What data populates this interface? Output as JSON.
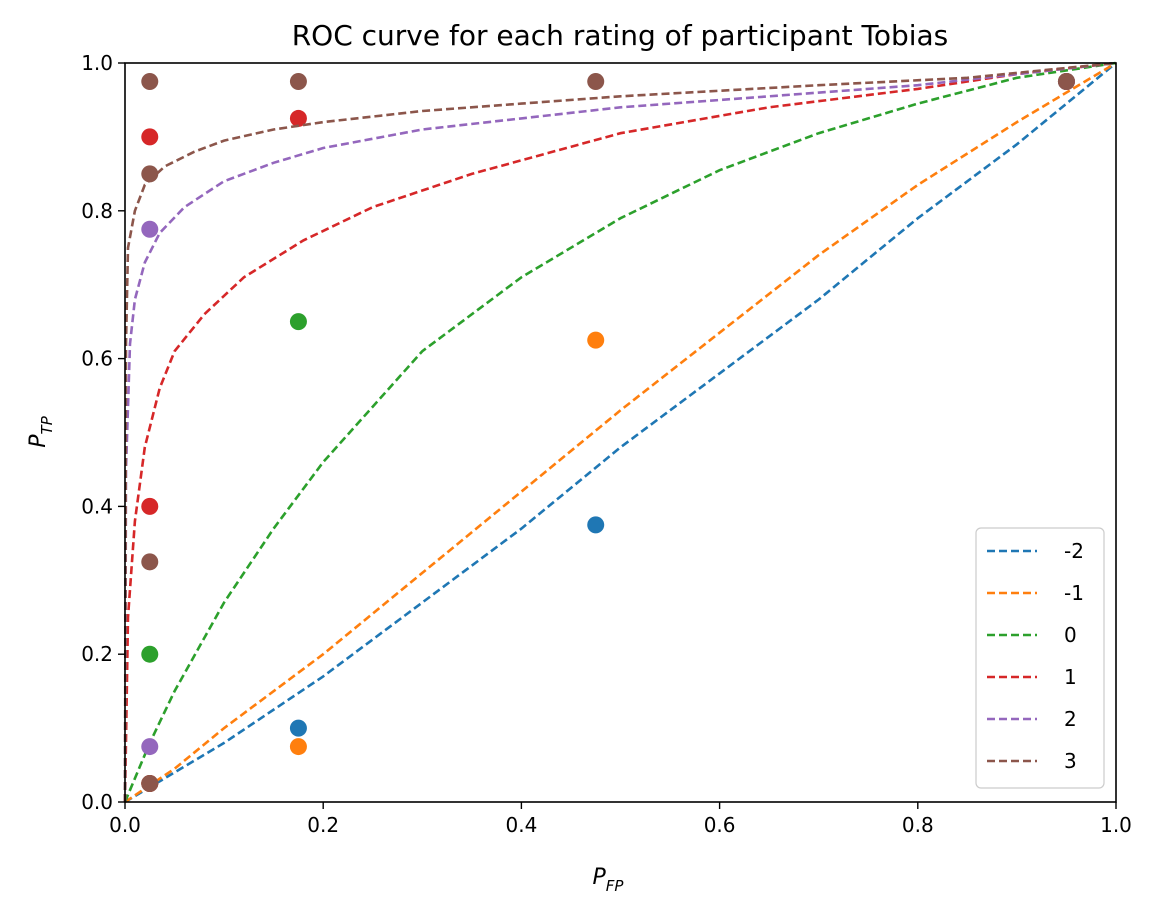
{
  "chart_data": {
    "type": "line",
    "title": "ROC curve for each rating of participant Tobias",
    "xlabel": {
      "main": "P",
      "sub": "FP"
    },
    "ylabel": {
      "main": "P",
      "sub": "TP"
    },
    "xlim": [
      0.0,
      1.0
    ],
    "ylim": [
      0.0,
      1.0
    ],
    "xticks": [
      0.0,
      0.2,
      0.4,
      0.6,
      0.8,
      1.0
    ],
    "yticks": [
      0.0,
      0.2,
      0.4,
      0.6,
      0.8,
      1.0
    ],
    "xtick_labels": [
      "0.0",
      "0.2",
      "0.4",
      "0.6",
      "0.8",
      "1.0"
    ],
    "ytick_labels": [
      "0.0",
      "0.2",
      "0.4",
      "0.6",
      "0.8",
      "1.0"
    ],
    "grid": false,
    "legend_position": "lower-right",
    "line_style": "dashed",
    "series": [
      {
        "name": "-2",
        "color": "#1f77b4",
        "curve": [
          [
            0,
            0
          ],
          [
            0.05,
            0.04
          ],
          [
            0.1,
            0.08
          ],
          [
            0.2,
            0.17
          ],
          [
            0.3,
            0.27
          ],
          [
            0.4,
            0.37
          ],
          [
            0.5,
            0.48
          ],
          [
            0.6,
            0.58
          ],
          [
            0.7,
            0.68
          ],
          [
            0.8,
            0.79
          ],
          [
            0.9,
            0.89
          ],
          [
            1.0,
            1.0
          ]
        ],
        "points": [
          [
            0.025,
            0.025
          ],
          [
            0.175,
            0.1
          ],
          [
            0.475,
            0.375
          ],
          [
            0.95,
            0.975
          ]
        ]
      },
      {
        "name": "-1",
        "color": "#ff7f0e",
        "curve": [
          [
            0,
            0
          ],
          [
            0.05,
            0.045
          ],
          [
            0.1,
            0.1
          ],
          [
            0.2,
            0.2
          ],
          [
            0.3,
            0.31
          ],
          [
            0.4,
            0.42
          ],
          [
            0.5,
            0.53
          ],
          [
            0.6,
            0.635
          ],
          [
            0.7,
            0.74
          ],
          [
            0.8,
            0.835
          ],
          [
            0.9,
            0.92
          ],
          [
            1.0,
            1.0
          ]
        ],
        "points": [
          [
            0.025,
            0.025
          ],
          [
            0.175,
            0.075
          ],
          [
            0.475,
            0.625
          ],
          [
            0.95,
            0.975
          ]
        ]
      },
      {
        "name": "0",
        "color": "#2ca02c",
        "curve": [
          [
            0,
            0
          ],
          [
            0.025,
            0.08
          ],
          [
            0.05,
            0.15
          ],
          [
            0.1,
            0.27
          ],
          [
            0.15,
            0.37
          ],
          [
            0.2,
            0.46
          ],
          [
            0.25,
            0.535
          ],
          [
            0.3,
            0.61
          ],
          [
            0.4,
            0.71
          ],
          [
            0.5,
            0.79
          ],
          [
            0.6,
            0.855
          ],
          [
            0.7,
            0.905
          ],
          [
            0.8,
            0.945
          ],
          [
            0.9,
            0.98
          ],
          [
            1.0,
            1.0
          ]
        ],
        "points": [
          [
            0.025,
            0.2
          ],
          [
            0.175,
            0.65
          ],
          [
            0.95,
            0.975
          ]
        ]
      },
      {
        "name": "1",
        "color": "#d62728",
        "curve": [
          [
            0,
            0
          ],
          [
            0.003,
            0.25
          ],
          [
            0.01,
            0.38
          ],
          [
            0.02,
            0.48
          ],
          [
            0.035,
            0.56
          ],
          [
            0.05,
            0.61
          ],
          [
            0.08,
            0.66
          ],
          [
            0.12,
            0.71
          ],
          [
            0.18,
            0.76
          ],
          [
            0.25,
            0.805
          ],
          [
            0.35,
            0.85
          ],
          [
            0.5,
            0.905
          ],
          [
            0.65,
            0.94
          ],
          [
            0.8,
            0.965
          ],
          [
            0.9,
            0.985
          ],
          [
            1.0,
            1.0
          ]
        ],
        "points": [
          [
            0.025,
            0.025
          ],
          [
            0.025,
            0.4
          ],
          [
            0.025,
            0.9
          ],
          [
            0.175,
            0.925
          ],
          [
            0.95,
            0.975
          ]
        ]
      },
      {
        "name": "2",
        "color": "#9467bd",
        "curve": [
          [
            0,
            0
          ],
          [
            0.001,
            0.45
          ],
          [
            0.005,
            0.62
          ],
          [
            0.01,
            0.68
          ],
          [
            0.02,
            0.73
          ],
          [
            0.035,
            0.77
          ],
          [
            0.06,
            0.805
          ],
          [
            0.1,
            0.84
          ],
          [
            0.15,
            0.865
          ],
          [
            0.2,
            0.885
          ],
          [
            0.3,
            0.91
          ],
          [
            0.4,
            0.925
          ],
          [
            0.5,
            0.94
          ],
          [
            0.6,
            0.95
          ],
          [
            0.8,
            0.97
          ],
          [
            1.0,
            1.0
          ]
        ],
        "points": [
          [
            0.025,
            0.075
          ],
          [
            0.025,
            0.775
          ],
          [
            0.95,
            0.975
          ]
        ]
      },
      {
        "name": "3",
        "color": "#8c564b",
        "curve": [
          [
            0,
            0
          ],
          [
            0.001,
            0.62
          ],
          [
            0.003,
            0.75
          ],
          [
            0.01,
            0.8
          ],
          [
            0.02,
            0.835
          ],
          [
            0.04,
            0.86
          ],
          [
            0.07,
            0.88
          ],
          [
            0.1,
            0.895
          ],
          [
            0.15,
            0.91
          ],
          [
            0.2,
            0.92
          ],
          [
            0.3,
            0.935
          ],
          [
            0.4,
            0.945
          ],
          [
            0.5,
            0.955
          ],
          [
            0.7,
            0.97
          ],
          [
            0.85,
            0.98
          ],
          [
            1.0,
            1.0
          ]
        ],
        "points": [
          [
            0.025,
            0.025
          ],
          [
            0.025,
            0.325
          ],
          [
            0.025,
            0.85
          ],
          [
            0.025,
            0.975
          ],
          [
            0.175,
            0.975
          ],
          [
            0.475,
            0.975
          ],
          [
            0.95,
            0.975
          ]
        ]
      }
    ]
  }
}
